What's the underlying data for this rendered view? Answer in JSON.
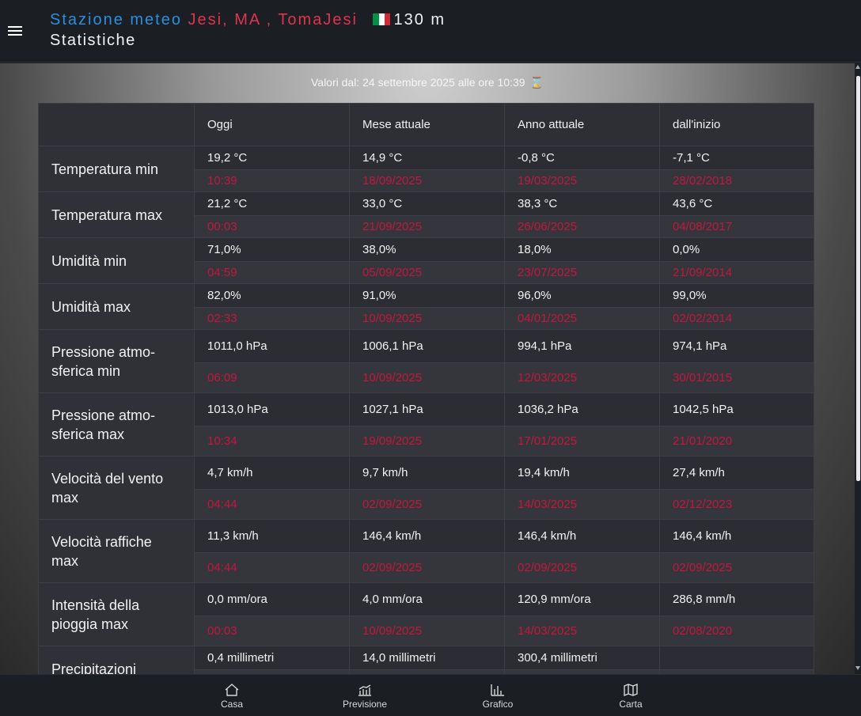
{
  "header": {
    "title_prefix": "Stazione meteo",
    "location": "Jesi, MA , TomaJesi",
    "altitude": "130 m",
    "subtitle": "Statistiche",
    "flag_colors": [
      "#009246",
      "#ffffff",
      "#ce2b37"
    ]
  },
  "since": {
    "text": "Valori dal: 24 settembre 2025 alle ore 10:39",
    "icon": "hourglass-icon"
  },
  "table": {
    "columns": [
      "",
      "Oggi",
      "Mese attuale",
      "Anno attuale",
      "dall'inizio"
    ],
    "rows": [
      {
        "label": "Temperatura min",
        "values": [
          "19,2 °C",
          "14,9 °C",
          "-0,8 °C",
          "-7,1 °C"
        ],
        "dates": [
          "10:39",
          "18/09/2025",
          "19/03/2025",
          "28/02/2018"
        ]
      },
      {
        "label": "Temperatura max",
        "values": [
          "21,2 °C",
          "33,0 °C",
          "38,3 °C",
          "43,6 °C"
        ],
        "dates": [
          "00:03",
          "21/09/2025",
          "26/06/2025",
          "04/08/2017"
        ]
      },
      {
        "label": "Umidità min",
        "values": [
          "71,0%",
          "38,0%",
          "18,0%",
          "0,0%"
        ],
        "dates": [
          "04:59",
          "05/09/2025",
          "23/07/2025",
          "21/09/2014"
        ]
      },
      {
        "label": "Umidità max",
        "values": [
          "82,0%",
          "91,0%",
          "96,0%",
          "99,0%"
        ],
        "dates": [
          "02:33",
          "10/09/2025",
          "04/01/2025",
          "02/02/2014"
        ]
      },
      {
        "label": "Pressione atmo-sferica min",
        "values": [
          "1011,0 hPa",
          "1006,1 hPa",
          "994,1 hPa",
          "974,1 hPa"
        ],
        "dates": [
          "06:09",
          "10/09/2025",
          "12/03/2025",
          "30/01/2015"
        ]
      },
      {
        "label": "Pressione atmo-sferica max",
        "values": [
          "1013,0 hPa",
          "1027,1 hPa",
          "1036,2 hPa",
          "1042,5 hPa"
        ],
        "dates": [
          "10:34",
          "19/09/2025",
          "17/01/2025",
          "21/01/2020"
        ]
      },
      {
        "label": "Velocità del vento max",
        "values": [
          "4,7 km/h",
          "9,7 km/h",
          "19,4 km/h",
          "27,4 km/h"
        ],
        "dates": [
          "04:44",
          "02/09/2025",
          "14/03/2025",
          "02/12/2023"
        ]
      },
      {
        "label": "Velocità raffiche max",
        "values": [
          "11,3 km/h",
          "146,4 km/h",
          "146,4 km/h",
          "146,4 km/h"
        ],
        "dates": [
          "04:44",
          "02/09/2025",
          "02/09/2025",
          "02/09/2025"
        ]
      },
      {
        "label": "Intensità della pioggia max",
        "values": [
          "0,0 mm/ora",
          "4,0 mm/ora",
          "120,9 mm/ora",
          "286,8 mm/h"
        ],
        "dates": [
          "00:03",
          "10/09/2025",
          "14/03/2025",
          "02/08/2020"
        ]
      },
      {
        "label": "Precipitazioni",
        "values": [
          "0,4 millimetri",
          "14,0 millimetri",
          "300,4 millimetri",
          ""
        ],
        "dates": [
          "",
          "",
          "",
          ""
        ]
      }
    ]
  },
  "bottom_nav": [
    {
      "label": "Casa",
      "icon": "home-icon"
    },
    {
      "label": "Previsione",
      "icon": "forecast-icon"
    },
    {
      "label": "Grafico",
      "icon": "chart-icon"
    },
    {
      "label": "Carta",
      "icon": "map-icon"
    }
  ]
}
